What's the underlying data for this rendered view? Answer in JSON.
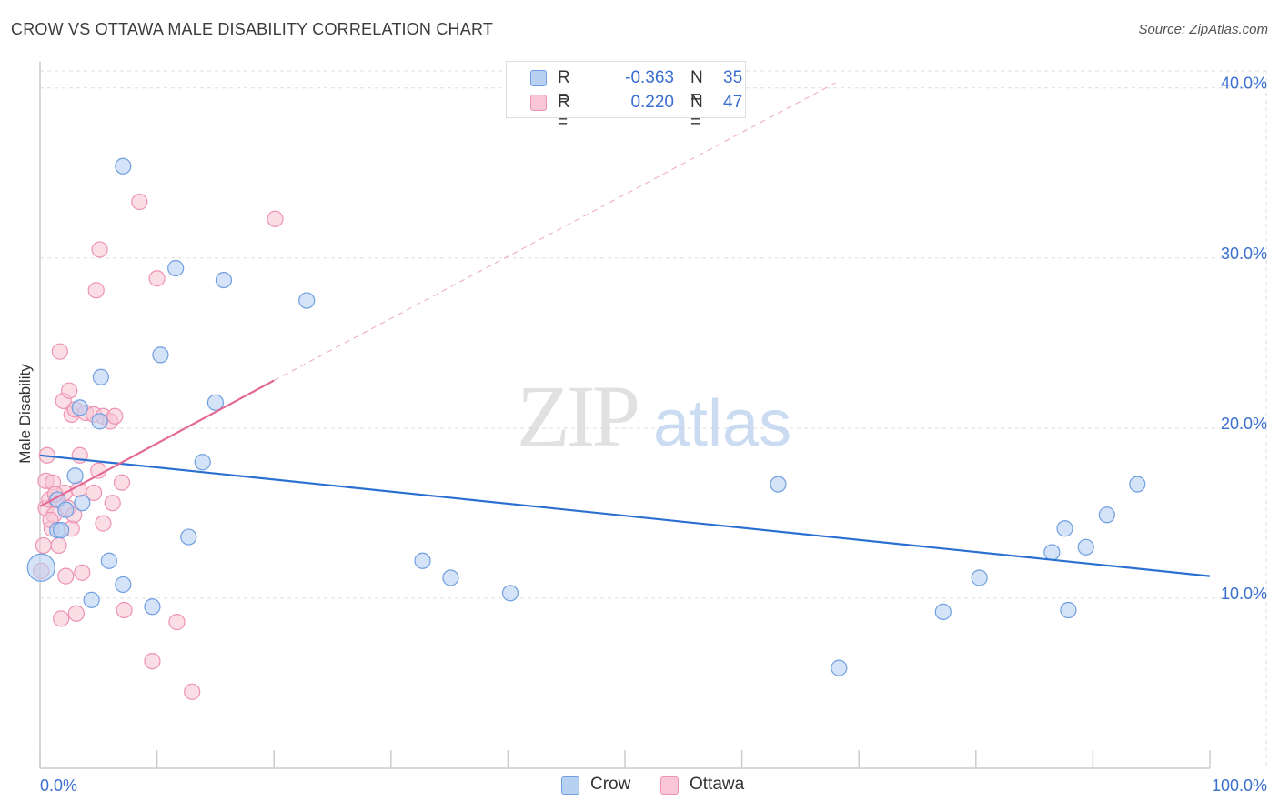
{
  "title": "CROW VS OTTAWA MALE DISABILITY CORRELATION CHART",
  "source": "Source: ZipAtlas.com",
  "watermark": {
    "zip": "ZIP",
    "atlas": "atlas"
  },
  "colors": {
    "crow_fill": "#b8d0f2",
    "crow_stroke": "#6f9fe0",
    "crow_line": "#2b6fd1",
    "ottawa_fill": "#f8c6d6",
    "ottawa_stroke": "#ee94b2",
    "ottawa_line": "#e46a96",
    "grid": "#dddddd",
    "tick_label": "#3a6fd0",
    "axis": "#cccccc"
  },
  "legend_top": {
    "crow": {
      "r_label": "R =",
      "r_value": "-0.363",
      "n_label": "N =",
      "n_value": "35"
    },
    "ottawa": {
      "r_label": "R =",
      "r_value": "0.220",
      "n_label": "N =",
      "n_value": "47"
    }
  },
  "legend_bottom": {
    "crow": "Crow",
    "ottawa": "Ottawa"
  },
  "chart_data": {
    "type": "scatter",
    "title": "CROW VS OTTAWA MALE DISABILITY CORRELATION CHART",
    "xlabel": "",
    "ylabel": "Male Disability",
    "xlim": [
      0,
      100
    ],
    "ylim": [
      0,
      41
    ],
    "x_tick_labels": [
      "0.0%",
      "100.0%"
    ],
    "y_ticks": [
      10,
      20,
      30,
      40
    ],
    "y_tick_labels": [
      "10.0%",
      "20.0%",
      "30.0%",
      "40.0%"
    ],
    "grid": true,
    "series": [
      {
        "name": "Crow",
        "r": -0.363,
        "n": 35,
        "points": [
          [
            0.1,
            11.8,
            2
          ],
          [
            1.5,
            15.8,
            1
          ],
          [
            1.5,
            14.0,
            1
          ],
          [
            2.2,
            15.2,
            1
          ],
          [
            3.0,
            17.2,
            1
          ],
          [
            3.4,
            21.2,
            1
          ],
          [
            5.1,
            20.4,
            1
          ],
          [
            5.2,
            23.0,
            1
          ],
          [
            5.9,
            12.2,
            1
          ],
          [
            7.1,
            10.8,
            1
          ],
          [
            4.4,
            9.9,
            1
          ],
          [
            7.1,
            35.4,
            1
          ],
          [
            9.6,
            9.5,
            1
          ],
          [
            10.3,
            24.3,
            1
          ],
          [
            11.6,
            29.4,
            1
          ],
          [
            12.7,
            13.6,
            1
          ],
          [
            13.9,
            18.0,
            1
          ],
          [
            15.0,
            21.5,
            1
          ],
          [
            15.7,
            28.7,
            1
          ],
          [
            22.8,
            27.5,
            1
          ],
          [
            32.7,
            12.2,
            1
          ],
          [
            35.1,
            11.2,
            1
          ],
          [
            40.2,
            10.3,
            1
          ],
          [
            63.1,
            16.7,
            1
          ],
          [
            68.3,
            5.9,
            1
          ],
          [
            77.2,
            9.2,
            1
          ],
          [
            80.3,
            11.2,
            1
          ],
          [
            86.5,
            12.7,
            1
          ],
          [
            87.6,
            14.1,
            1
          ],
          [
            87.9,
            9.3,
            1
          ],
          [
            89.4,
            13.0,
            1
          ],
          [
            91.2,
            14.9,
            1
          ],
          [
            93.8,
            16.7,
            1
          ],
          [
            1.8,
            14.0,
            1
          ],
          [
            3.6,
            15.6,
            1
          ]
        ],
        "trend": {
          "x": [
            0,
            100
          ],
          "y": [
            18.4,
            11.3
          ]
        }
      },
      {
        "name": "Ottawa",
        "r": 0.22,
        "n": 47,
        "points": [
          [
            0.1,
            11.6,
            1
          ],
          [
            0.3,
            13.1,
            1
          ],
          [
            0.5,
            16.9,
            1
          ],
          [
            0.5,
            15.3,
            1
          ],
          [
            0.6,
            18.4,
            1
          ],
          [
            0.8,
            15.8,
            1
          ],
          [
            1.0,
            14.1,
            1
          ],
          [
            1.1,
            16.8,
            1
          ],
          [
            1.2,
            14.9,
            1
          ],
          [
            1.4,
            15.8,
            1
          ],
          [
            1.6,
            13.1,
            1
          ],
          [
            1.7,
            24.5,
            1
          ],
          [
            1.8,
            8.8,
            1
          ],
          [
            2.0,
            21.6,
            1
          ],
          [
            2.1,
            16.2,
            1
          ],
          [
            2.2,
            11.3,
            1
          ],
          [
            2.4,
            15.3,
            1
          ],
          [
            2.5,
            22.2,
            1
          ],
          [
            2.7,
            14.1,
            1
          ],
          [
            2.7,
            20.8,
            1
          ],
          [
            3.0,
            21.1,
            1
          ],
          [
            3.1,
            9.1,
            1
          ],
          [
            3.3,
            16.4,
            1
          ],
          [
            3.4,
            18.4,
            1
          ],
          [
            3.6,
            11.5,
            1
          ],
          [
            3.9,
            20.9,
            1
          ],
          [
            4.6,
            20.8,
            1
          ],
          [
            4.6,
            16.2,
            1
          ],
          [
            4.8,
            28.1,
            1
          ],
          [
            5.0,
            17.5,
            1
          ],
          [
            5.1,
            30.5,
            1
          ],
          [
            5.4,
            14.4,
            1
          ],
          [
            5.4,
            20.7,
            1
          ],
          [
            6.0,
            20.4,
            1
          ],
          [
            6.2,
            15.6,
            1
          ],
          [
            6.4,
            20.7,
            1
          ],
          [
            7.0,
            16.8,
            1
          ],
          [
            7.2,
            9.3,
            1
          ],
          [
            8.5,
            33.3,
            1
          ],
          [
            9.6,
            6.3,
            1
          ],
          [
            10.0,
            28.8,
            1
          ],
          [
            11.7,
            8.6,
            1
          ],
          [
            13.0,
            4.5,
            1
          ],
          [
            20.1,
            32.3,
            1
          ],
          [
            0.9,
            14.6,
            1
          ],
          [
            1.3,
            16.1,
            1
          ],
          [
            2.9,
            14.9,
            1
          ]
        ],
        "trend": {
          "x": [
            0,
            20
          ],
          "y": [
            15.4,
            22.8
          ]
        },
        "trend_extension": {
          "x": [
            20,
            68
          ],
          "y": [
            22.8,
            40.3
          ]
        }
      }
    ]
  }
}
